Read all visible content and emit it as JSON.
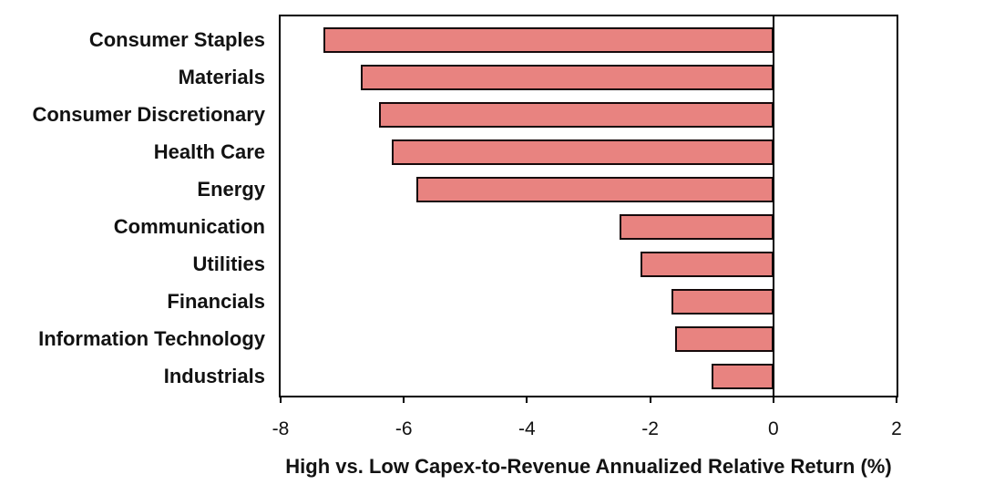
{
  "chart_data": {
    "type": "bar",
    "orientation": "horizontal",
    "title": "",
    "xlabel": "High vs. Low Capex-to-Revenue Annualized Relative Return (%)",
    "ylabel": "",
    "categories": [
      "Consumer Staples",
      "Materials",
      "Consumer Discretionary",
      "Health Care",
      "Energy",
      "Communication",
      "Utilities",
      "Financials",
      "Information Technology",
      "Industrials"
    ],
    "values": [
      -7.3,
      -6.7,
      -6.4,
      -6.2,
      -5.8,
      -2.5,
      -2.15,
      -1.65,
      -1.6,
      -1.0
    ],
    "xlim": [
      -8,
      2
    ],
    "xticks": [
      "-8",
      "-6",
      "-4",
      "-2",
      "0",
      "2"
    ],
    "xtick_values": [
      -8,
      -6,
      -4,
      -2,
      0,
      2
    ],
    "grid": false,
    "legend": false,
    "zero_line": true,
    "colors": {
      "bar_fill": "#e88380",
      "bar_border": "#16090b",
      "axis": "#000000",
      "text": "#121212",
      "background": "#ffffff"
    }
  }
}
